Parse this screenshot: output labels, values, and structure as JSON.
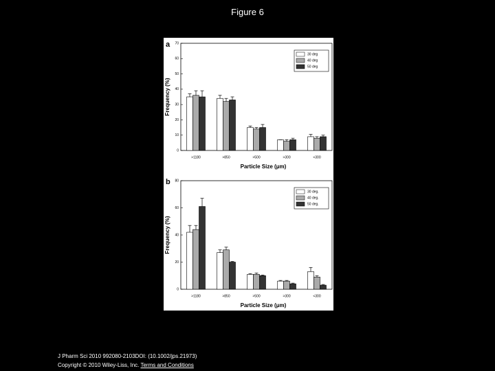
{
  "slide_title": "Figure 6",
  "footer": {
    "citation": "J Pharm Sci 2010 992080-2103DOI: (10.1002/jps.21973)",
    "copyright": "Copyright © 2010 Wiley-Liss, Inc.",
    "link": "Terms and Conditions"
  },
  "chart_data": [
    {
      "type": "bar",
      "panel_label": "a",
      "x_label": "Particle Size (μm)",
      "y_label": "Frequency (%)",
      "categories": [
        ">1180",
        ">850",
        ">500",
        ">300",
        "<300"
      ],
      "series": [
        {
          "name": "30 deg",
          "color": "#ffffff",
          "values": [
            35,
            34,
            15,
            7,
            9
          ],
          "errors": [
            2,
            2,
            1,
            0,
            1.5
          ]
        },
        {
          "name": "40 deg",
          "color": "#aaaaaa",
          "values": [
            36,
            32,
            14,
            6,
            8
          ],
          "errors": [
            3,
            2,
            1,
            1,
            1
          ]
        },
        {
          "name": "50 deg",
          "color": "#333333",
          "values": [
            35,
            33,
            15,
            7,
            9
          ],
          "errors": [
            4,
            2,
            2,
            1,
            1
          ]
        }
      ],
      "ylim": [
        0,
        70
      ],
      "yticks": [
        0,
        10,
        20,
        30,
        40,
        50,
        60,
        70
      ],
      "legend": "top-right"
    },
    {
      "type": "bar",
      "panel_label": "b",
      "x_label": "Particle Size (μm)",
      "y_label": "Frequency (%)",
      "categories": [
        ">1180",
        ">850",
        ">500",
        ">300",
        "<300"
      ],
      "series": [
        {
          "name": "30 deg.",
          "color": "#ffffff",
          "values": [
            42,
            27,
            11,
            6,
            13
          ],
          "errors": [
            5,
            2,
            0.5,
            0.5,
            3
          ]
        },
        {
          "name": "40 deg.",
          "color": "#aaaaaa",
          "values": [
            44,
            29,
            11,
            6,
            9
          ],
          "errors": [
            3,
            2,
            1,
            0.5,
            1
          ]
        },
        {
          "name": "50 deg.",
          "color": "#333333",
          "values": [
            61,
            20,
            10,
            4,
            3
          ],
          "errors": [
            6,
            0.5,
            0.5,
            0.5,
            0.5
          ]
        }
      ],
      "ylim": [
        0,
        80
      ],
      "yticks": [
        0,
        20,
        40,
        60,
        80
      ],
      "legend": "top-right"
    }
  ]
}
